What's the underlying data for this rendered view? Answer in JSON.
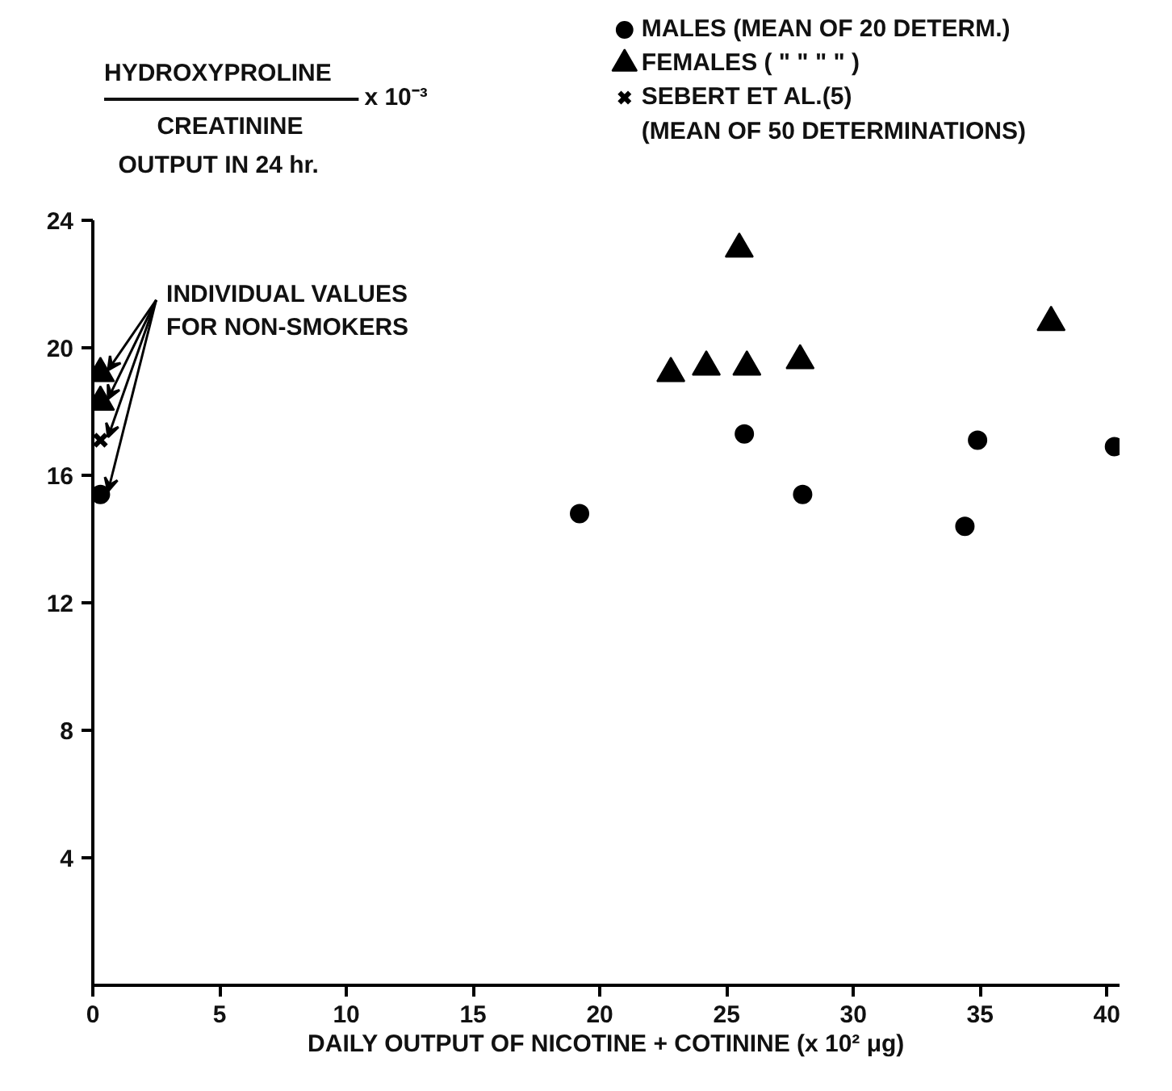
{
  "chart_data": {
    "type": "scatter",
    "xlabel": "DAILY OUTPUT OF NICOTINE + COTININE (x 10² μg)",
    "ylabel": "HYDROXYPROLINE\nCREATININE x 10⁻³\nOUTPUT IN 24 hr.",
    "annotations": [
      {
        "text": "INDIVIDUAL VALUES\nFOR NON-SMOKERS",
        "x": 0.3,
        "y": 19.2
      }
    ],
    "xlim": [
      0,
      40.5
    ],
    "xticks": [
      0,
      5,
      10,
      15,
      20,
      25,
      30,
      35,
      40
    ],
    "ylim": [
      0,
      24
    ],
    "yticks": [
      4,
      8,
      12,
      16,
      20,
      24
    ],
    "grid": false,
    "legend": "top right",
    "series": [
      {
        "name": "MALES      (MEAN OF 20 DETERM.)",
        "color": "#000000",
        "marker": "circle",
        "x": [
          0.3,
          19.2,
          25.7,
          28.0,
          34.4,
          34.9,
          40.3
        ],
        "values": [
          15.4,
          14.8,
          17.3,
          15.4,
          14.4,
          17.1,
          16.9
        ]
      },
      {
        "name": "FEMALES (   \"      \"      \"      \"   )",
        "color": "#000000",
        "marker": "triangle",
        "x": [
          0.3,
          0.3,
          22.8,
          24.2,
          25.5,
          25.8,
          27.9,
          37.8
        ],
        "values": [
          19.2,
          18.3,
          19.2,
          19.4,
          23.1,
          19.4,
          19.6,
          20.8
        ]
      },
      {
        "name": "SEBERT ET AL.(5)\n(MEAN OF 50 DETERMINATIONS)",
        "color": "#000000",
        "marker": "cross",
        "x": [
          0.3
        ],
        "values": [
          17.1
        ]
      }
    ]
  }
}
